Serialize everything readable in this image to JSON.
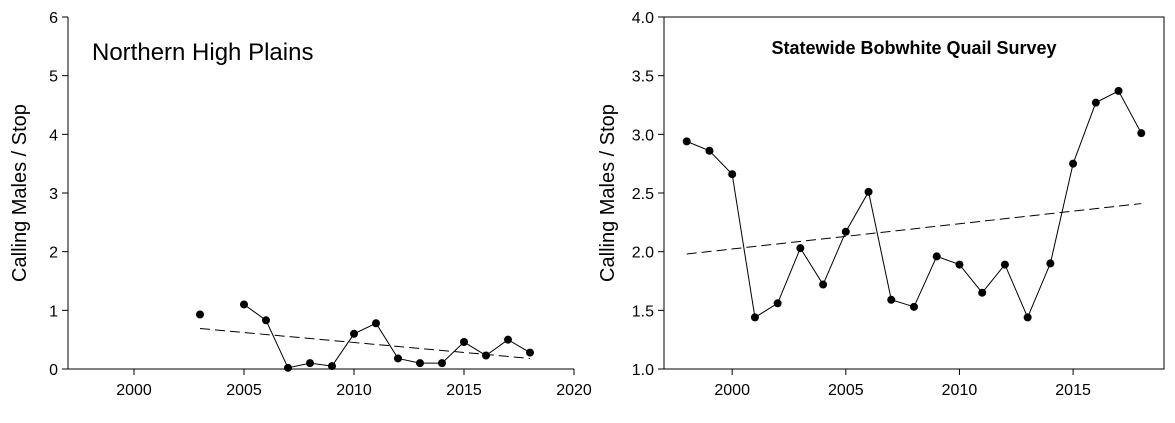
{
  "chart_data": [
    {
      "type": "line",
      "title": "Northern High Plains",
      "xlabel": "",
      "ylabel": "Calling Males / Stop",
      "xlim": [
        1997,
        2020
      ],
      "ylim": [
        0,
        6
      ],
      "xticks": [
        2000,
        2005,
        2010,
        2015,
        2020
      ],
      "yticks": [
        0,
        1,
        2,
        3,
        4,
        5,
        6
      ],
      "grid": false,
      "series": [
        {
          "x": [
            2003,
            2005,
            2006,
            2007,
            2008,
            2009,
            2010,
            2011,
            2012,
            2013,
            2014,
            2015,
            2016,
            2017,
            2018
          ],
          "y": [
            0.93,
            1.1,
            0.83,
            0.02,
            0.1,
            0.05,
            0.6,
            0.78,
            0.18,
            0.1,
            0.1,
            0.46,
            0.23,
            0.5,
            0.28
          ],
          "segments": [
            [
              2005,
              2018
            ]
          ]
        }
      ],
      "trend": {
        "x": [
          2003,
          2018
        ],
        "y": [
          0.69,
          0.18
        ]
      }
    },
    {
      "type": "line",
      "title": "Statewide Bobwhite Quail Survey",
      "xlabel": "",
      "ylabel": "Calling Males / Stop",
      "xlim": [
        1997,
        2019
      ],
      "ylim": [
        1.0,
        4.0
      ],
      "xticks": [
        2000,
        2005,
        2010,
        2015
      ],
      "yticks": [
        1.0,
        1.5,
        2.0,
        2.5,
        3.0,
        3.5,
        4.0
      ],
      "ytick_labels": [
        "1.0",
        "1.5",
        "2.0",
        "2.5",
        "3.0",
        "3.5",
        "4.0"
      ],
      "grid": false,
      "series": [
        {
          "x": [
            1998,
            1999,
            2000,
            2001,
            2002,
            2003,
            2004,
            2005,
            2006,
            2007,
            2008,
            2009,
            2010,
            2011,
            2012,
            2013,
            2014,
            2015,
            2016,
            2017,
            2018
          ],
          "y": [
            2.94,
            2.86,
            2.66,
            1.44,
            1.56,
            2.03,
            1.72,
            2.17,
            2.51,
            1.59,
            1.53,
            1.96,
            1.89,
            1.65,
            1.89,
            1.44,
            1.9,
            2.75,
            3.27,
            3.37,
            3.01
          ],
          "segments": [
            [
              1998,
              2018
            ]
          ]
        }
      ],
      "trend": {
        "x": [
          1998,
          2018
        ],
        "y": [
          1.98,
          2.41
        ]
      }
    }
  ]
}
